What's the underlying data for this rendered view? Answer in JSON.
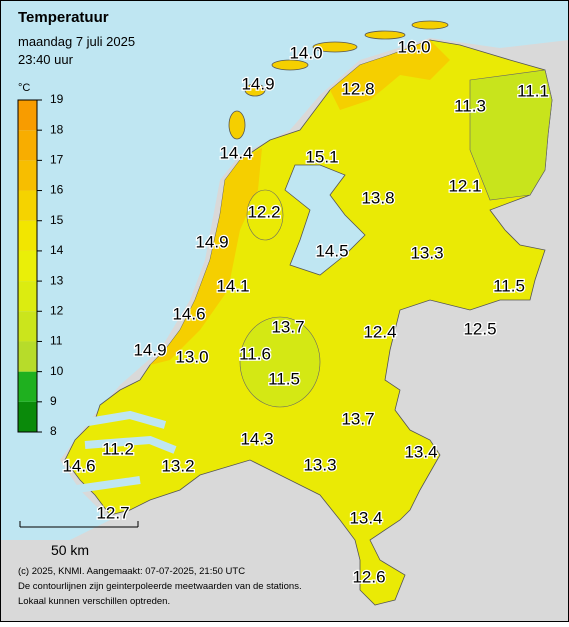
{
  "header": {
    "title": "Temperatuur",
    "date": "maandag 7 juli 2025",
    "time": "23:40 uur"
  },
  "legend": {
    "unit": "°C",
    "ticks": [
      8,
      9,
      10,
      11,
      12,
      13,
      14,
      15,
      16,
      17,
      18,
      19
    ],
    "colors": [
      "#0a8a0a",
      "#1fb01f",
      "#b7dc2a",
      "#cbe51c",
      "#dcec10",
      "#eaef08",
      "#f2e600",
      "#f5d300",
      "#f7be00",
      "#f8ad00",
      "#f89c00"
    ]
  },
  "stations": [
    "14.0",
    "16.0",
    "14.9",
    "12.8",
    "11.3",
    "11.1",
    "14.4",
    "15.1",
    "13.8",
    "12.1",
    "12.2",
    "14.9",
    "14.5",
    "13.3",
    "14.1",
    "11.5",
    "14.6",
    "13.7",
    "12.4",
    "12.5",
    "14.9",
    "13.0",
    "11.6",
    "11.5",
    "13.7",
    "11.2",
    "14.3",
    "13.4",
    "14.6",
    "13.2",
    "13.3",
    "12.7",
    "13.4",
    "12.6"
  ],
  "scale": "50 km",
  "footer": [
    "(c) 2025, KNMI. Aangemaakt: 07-07-2025, 21:50 UTC",
    "De contourlijnen zijn geinterpoleerde meetwaarden van de stations.",
    "Lokaal kunnen verschillen optreden."
  ]
}
